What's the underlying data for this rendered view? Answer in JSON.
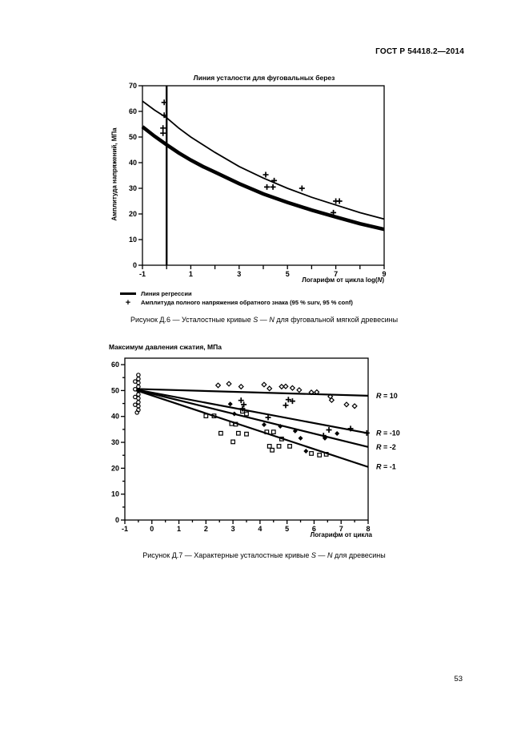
{
  "header": {
    "title": "ГОСТ Р 54418.2—2014"
  },
  "page_number": "53",
  "colors": {
    "ink": "#000000",
    "paper": "#ffffff"
  },
  "figure_d6": {
    "title": "Линия усталости для фуговальных берез",
    "ylabel": "Амплитуда напряжений, МПа",
    "xlabel_parts": {
      "prefix": "Логарифм от цикла log(",
      "n": "N",
      "suffix": ")"
    },
    "legend": [
      {
        "marker": "line",
        "label": "Линия регрессии"
      },
      {
        "marker": "plus",
        "marker_glyph": "+",
        "label": "Амплитуда полного напряжения обратного знака (95 % surv, 95 % conf)"
      }
    ],
    "caption_parts": [
      "Рисунок Д.6 — Усталостные кривые ",
      "S",
      " — ",
      "N",
      " для фуговальной мягкой древесины"
    ],
    "chart_data": {
      "type": "line",
      "xlim": [
        -1,
        9
      ],
      "ylim": [
        0,
        70
      ],
      "x_ticks": {
        "min": -1,
        "max": 9,
        "step": 1,
        "major_step": 1,
        "label_values": [
          -1,
          1,
          3,
          5,
          7,
          9
        ]
      },
      "y_ticks": {
        "min": 0,
        "max": 70,
        "step": 10,
        "major_step": 10,
        "label_values": [
          0,
          10,
          20,
          30,
          40,
          50,
          60,
          70
        ]
      },
      "vertical_line_x": 0,
      "series": [
        {
          "name": "upper-regression-curve",
          "type": "line",
          "stroke_width": 1.8,
          "x": [
            -1,
            -0.5,
            0,
            0.5,
            1,
            1.5,
            2,
            3,
            4,
            5,
            6,
            7,
            8,
            9
          ],
          "y": [
            64,
            60.5,
            57.5,
            53.5,
            50,
            47,
            44,
            38.5,
            34,
            30,
            26.5,
            23.5,
            20.5,
            18
          ]
        },
        {
          "name": "lower-thick-curve",
          "type": "line",
          "stroke_width": 4.5,
          "x": [
            -1,
            -0.5,
            0,
            0.5,
            1,
            1.5,
            2,
            3,
            4,
            5,
            6,
            7,
            8,
            9
          ],
          "y": [
            54,
            50.3,
            47,
            43.8,
            41,
            38.5,
            36.3,
            31.8,
            27.8,
            24.5,
            21.5,
            18.8,
            16.2,
            14
          ]
        },
        {
          "name": "amplitude-plus-points",
          "type": "scatter",
          "marker": "plus",
          "points": [
            [
              -0.1,
              63.5
            ],
            [
              -0.1,
              58.5
            ],
            [
              -0.15,
              53.5
            ],
            [
              -0.15,
              51.5
            ],
            [
              4.1,
              35.3
            ],
            [
              4.45,
              33
            ],
            [
              4.15,
              30.5
            ],
            [
              4.4,
              30.5
            ],
            [
              5.6,
              30
            ],
            [
              7.0,
              25
            ],
            [
              7.15,
              25
            ],
            [
              6.9,
              20.5
            ]
          ]
        }
      ]
    }
  },
  "figure_d7": {
    "title": "Максимум давления сжатия, МПа",
    "xlabel": "Логарифм от цикла",
    "caption_parts": [
      "Рисунок Д.7 — Характерные усталостные кривые ",
      "S",
      " — ",
      "N",
      " для древесины"
    ],
    "chart_data": {
      "type": "line+scatter",
      "xlim": [
        -1,
        8
      ],
      "ylim": [
        0,
        62.5
      ],
      "x_ticks": {
        "min": -1,
        "max": 8,
        "step": 0.5,
        "major_step": 1,
        "label_values": [
          -1,
          0,
          1,
          2,
          3,
          4,
          5,
          6,
          7,
          8
        ]
      },
      "y_ticks": {
        "min": 0,
        "max": 60,
        "step": 5,
        "major_step": 10,
        "label_values": [
          0,
          10,
          20,
          30,
          40,
          50,
          60
        ]
      },
      "lines": [
        {
          "label": "R = 10",
          "x": [
            -0.55,
            8
          ],
          "y": [
            50.6,
            48.0
          ]
        },
        {
          "label": "R = -10",
          "x": [
            -0.55,
            8
          ],
          "y": [
            50.3,
            33.5
          ]
        },
        {
          "label": "R = -2",
          "x": [
            -0.55,
            8
          ],
          "y": [
            50.2,
            28.2
          ]
        },
        {
          "label": "R = -1",
          "x": [
            -0.55,
            8
          ],
          "y": [
            50.0,
            20.5
          ]
        }
      ],
      "scatter": [
        {
          "name": "static-strength-circle-stack",
          "marker": "circle-open",
          "points": [
            [
              -0.5,
              56
            ],
            [
              -0.5,
              54.5
            ],
            [
              -0.5,
              53
            ],
            [
              -0.5,
              51.5
            ],
            [
              -0.5,
              50
            ],
            [
              -0.5,
              48.5
            ],
            [
              -0.5,
              47
            ],
            [
              -0.5,
              45.5
            ],
            [
              -0.5,
              44
            ],
            [
              -0.5,
              42.5
            ],
            [
              -0.62,
              53.5
            ],
            [
              -0.62,
              50.5
            ],
            [
              -0.62,
              47.5
            ],
            [
              -0.62,
              44.5
            ],
            [
              -0.55,
              41.5
            ]
          ]
        },
        {
          "name": "r10-open-diamonds",
          "marker": "diamond-open",
          "points": [
            [
              2.45,
              52
            ],
            [
              2.85,
              52.6
            ],
            [
              3.3,
              51.5
            ],
            [
              4.15,
              52.3
            ],
            [
              4.35,
              50.8
            ],
            [
              4.8,
              51.5
            ],
            [
              4.95,
              51.6
            ],
            [
              5.2,
              51
            ],
            [
              5.45,
              50.2
            ],
            [
              5.9,
              49.3
            ],
            [
              6.1,
              49.4
            ],
            [
              6.6,
              47.7
            ],
            [
              6.65,
              46.3
            ],
            [
              7.2,
              44.6
            ],
            [
              7.5,
              44
            ]
          ]
        },
        {
          "name": "plus-points",
          "marker": "plus",
          "points": [
            [
              3.3,
              46.2
            ],
            [
              3.4,
              44.6
            ],
            [
              3.35,
              43
            ],
            [
              4.95,
              44.3
            ],
            [
              5.05,
              46.5
            ],
            [
              5.2,
              45.9
            ],
            [
              4.3,
              39.6
            ],
            [
              6.55,
              34.8
            ],
            [
              6.35,
              32.6
            ],
            [
              7.35,
              35.3
            ],
            [
              7.95,
              33.6
            ]
          ]
        },
        {
          "name": "filled-diamond-points",
          "marker": "diamond-filled",
          "points": [
            [
              2.9,
              44.8
            ],
            [
              3.05,
              41
            ],
            [
              4.15,
              36.8
            ],
            [
              4.75,
              36.2
            ],
            [
              5.3,
              34.4
            ],
            [
              5.5,
              31.6
            ],
            [
              6.4,
              31.6
            ],
            [
              5.7,
              26.6
            ],
            [
              6.85,
              33.4
            ]
          ]
        },
        {
          "name": "square-points",
          "marker": "square-open",
          "points": [
            [
              2.0,
              40.2
            ],
            [
              2.3,
              40.2
            ],
            [
              2.95,
              37.2
            ],
            [
              3.1,
              37
            ],
            [
              3.35,
              42
            ],
            [
              3.5,
              41
            ],
            [
              2.55,
              33.5
            ],
            [
              3.2,
              33.5
            ],
            [
              3.5,
              33.2
            ],
            [
              4.25,
              34
            ],
            [
              4.5,
              34
            ],
            [
              4.8,
              31.3
            ],
            [
              4.35,
              28.5
            ],
            [
              4.7,
              28.5
            ],
            [
              5.1,
              28.5
            ],
            [
              4.45,
              27
            ],
            [
              5.9,
              25.7
            ],
            [
              6.2,
              25.1
            ],
            [
              6.45,
              25.4
            ],
            [
              3.0,
              30.2
            ]
          ]
        }
      ]
    }
  }
}
